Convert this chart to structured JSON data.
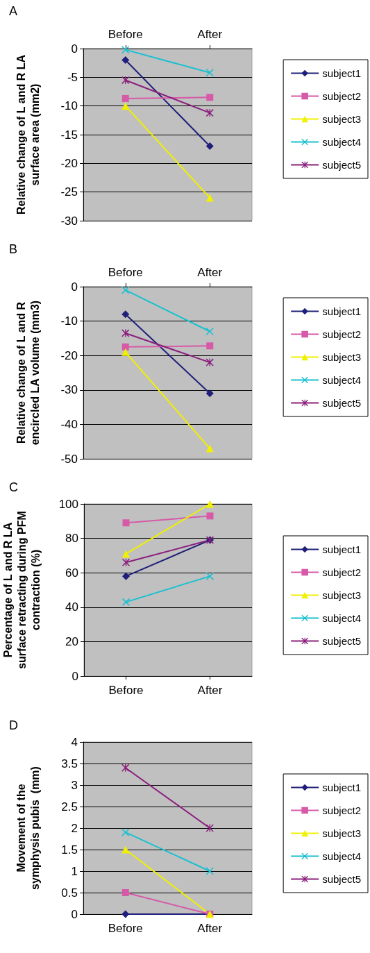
{
  "chart_data": [
    {
      "type": "line",
      "title": "A",
      "ylabel": "Relative change of L and R LA\nsurface area (mm2)",
      "categories": [
        "Before",
        "After"
      ],
      "ylim": [
        -30,
        0
      ],
      "yticks": [
        -30,
        -25,
        -20,
        -15,
        -10,
        -5,
        0
      ],
      "grid": "y",
      "legend": "right",
      "series": [
        {
          "name": "subject1",
          "color": "#1f1f7a",
          "marker": "diamond",
          "values": [
            -2,
            -17
          ]
        },
        {
          "name": "subject2",
          "color": "#d65aa8",
          "marker": "square",
          "values": [
            -8.7,
            -8.5
          ]
        },
        {
          "name": "subject3",
          "color": "#f0f000",
          "marker": "triangle",
          "values": [
            -10,
            -26
          ]
        },
        {
          "name": "subject4",
          "color": "#19c0d0",
          "marker": "cross",
          "values": [
            -0.2,
            -4.2
          ]
        },
        {
          "name": "subject5",
          "color": "#8b1f7d",
          "marker": "star",
          "values": [
            -5.5,
            -11.2
          ]
        }
      ]
    },
    {
      "type": "line",
      "title": "B",
      "ylabel": "Relative change of L and R\nencircled LA volume (mm3)",
      "categories": [
        "Before",
        "After"
      ],
      "ylim": [
        -50,
        0
      ],
      "yticks": [
        -50,
        -40,
        -30,
        -20,
        -10,
        0
      ],
      "grid": "y",
      "legend": "right",
      "series": [
        {
          "name": "subject1",
          "color": "#1f1f7a",
          "marker": "diamond",
          "values": [
            -8,
            -31
          ]
        },
        {
          "name": "subject2",
          "color": "#d65aa8",
          "marker": "square",
          "values": [
            -17.5,
            -17.2
          ]
        },
        {
          "name": "subject3",
          "color": "#f0f000",
          "marker": "triangle",
          "values": [
            -19,
            -47
          ]
        },
        {
          "name": "subject4",
          "color": "#19c0d0",
          "marker": "cross",
          "values": [
            -1,
            -13
          ]
        },
        {
          "name": "subject5",
          "color": "#8b1f7d",
          "marker": "star",
          "values": [
            -13.5,
            -22
          ]
        }
      ]
    },
    {
      "type": "line",
      "title": "C",
      "ylabel": "Percentage of L and R LA\nsurface retracting during PFM\ncontraction (%)",
      "categories": [
        "Before",
        "After"
      ],
      "ylim": [
        0,
        100
      ],
      "yticks": [
        0,
        20,
        40,
        60,
        80,
        100
      ],
      "grid": "y",
      "legend": "right",
      "series": [
        {
          "name": "subject1",
          "color": "#1f1f7a",
          "marker": "diamond",
          "values": [
            58,
            79
          ]
        },
        {
          "name": "subject2",
          "color": "#d65aa8",
          "marker": "square",
          "values": [
            89,
            93
          ]
        },
        {
          "name": "subject3",
          "color": "#f0f000",
          "marker": "triangle",
          "values": [
            71,
            100
          ]
        },
        {
          "name": "subject4",
          "color": "#19c0d0",
          "marker": "cross",
          "values": [
            43,
            58
          ]
        },
        {
          "name": "subject5",
          "color": "#8b1f7d",
          "marker": "star",
          "values": [
            66,
            79
          ]
        }
      ]
    },
    {
      "type": "line",
      "title": "D",
      "ylabel": "Movement of the\nsymphysis pubis  (mm)",
      "categories": [
        "Before",
        "After"
      ],
      "ylim": [
        0,
        4
      ],
      "yticks": [
        0,
        0.5,
        1,
        1.5,
        2,
        2.5,
        3,
        3.5,
        4
      ],
      "grid": "y",
      "legend": "right",
      "series": [
        {
          "name": "subject1",
          "color": "#1f1f7a",
          "marker": "diamond",
          "values": [
            0,
            0
          ]
        },
        {
          "name": "subject2",
          "color": "#d65aa8",
          "marker": "square",
          "values": [
            0.5,
            0
          ]
        },
        {
          "name": "subject3",
          "color": "#f0f000",
          "marker": "triangle",
          "values": [
            1.5,
            0
          ]
        },
        {
          "name": "subject4",
          "color": "#19c0d0",
          "marker": "cross",
          "values": [
            1.9,
            1
          ]
        },
        {
          "name": "subject5",
          "color": "#8b1f7d",
          "marker": "star",
          "values": [
            3.4,
            2
          ]
        }
      ]
    }
  ]
}
